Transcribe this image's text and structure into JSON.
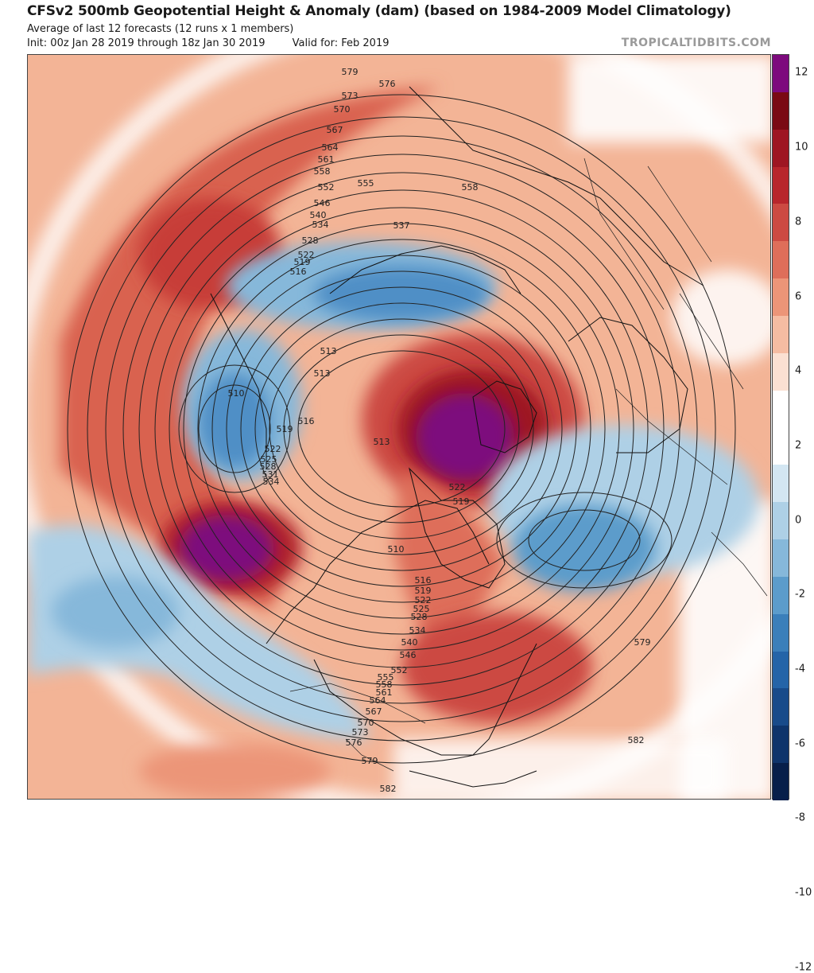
{
  "header": {
    "title": "CFSv2 500mb Geopotential Height & Anomaly (dam) (based on 1984-2009 Model Climatology)",
    "subtitle": "Average of last 12 forecasts (12 runs x 1 members)",
    "init": "Init: 00z Jan 28 2019 through 18z Jan 30 2019",
    "valid": "Valid for: Feb 2019",
    "brand": "TROPICALTIDBITS.COM"
  },
  "colorbar": {
    "labels": [
      "12",
      "10",
      "8",
      "6",
      "4",
      "2",
      "0",
      "-2",
      "-4",
      "-6",
      "-8",
      "-10",
      "-12"
    ],
    "colors": [
      "#7d0a7d",
      "#7a0a14",
      "#9e1622",
      "#b8262c",
      "#cc4a42",
      "#de6e5a",
      "#ec9578",
      "#f5bca2",
      "#fbe0d2",
      "#ffffff",
      "#ffffff",
      "#d3e6f2",
      "#aed0e6",
      "#86b8da",
      "#5c9ccb",
      "#3b7fba",
      "#2464a8",
      "#184b8a",
      "#0e346b",
      "#071f4a"
    ]
  },
  "contour_labels": [
    "579",
    "576",
    "573",
    "570",
    "567",
    "564",
    "561",
    "558",
    "555",
    "552",
    "546",
    "540",
    "537",
    "534",
    "528",
    "522",
    "519",
    "516",
    "513",
    "510",
    "513",
    "516",
    "519",
    "522",
    "525",
    "528",
    "531",
    "534",
    "513",
    "522",
    "519",
    "510",
    "516",
    "519",
    "522",
    "525",
    "528",
    "534",
    "540",
    "546",
    "552",
    "555",
    "558",
    "561",
    "564",
    "567",
    "570",
    "573",
    "576",
    "579",
    "579",
    "582",
    "582",
    "558"
  ]
}
